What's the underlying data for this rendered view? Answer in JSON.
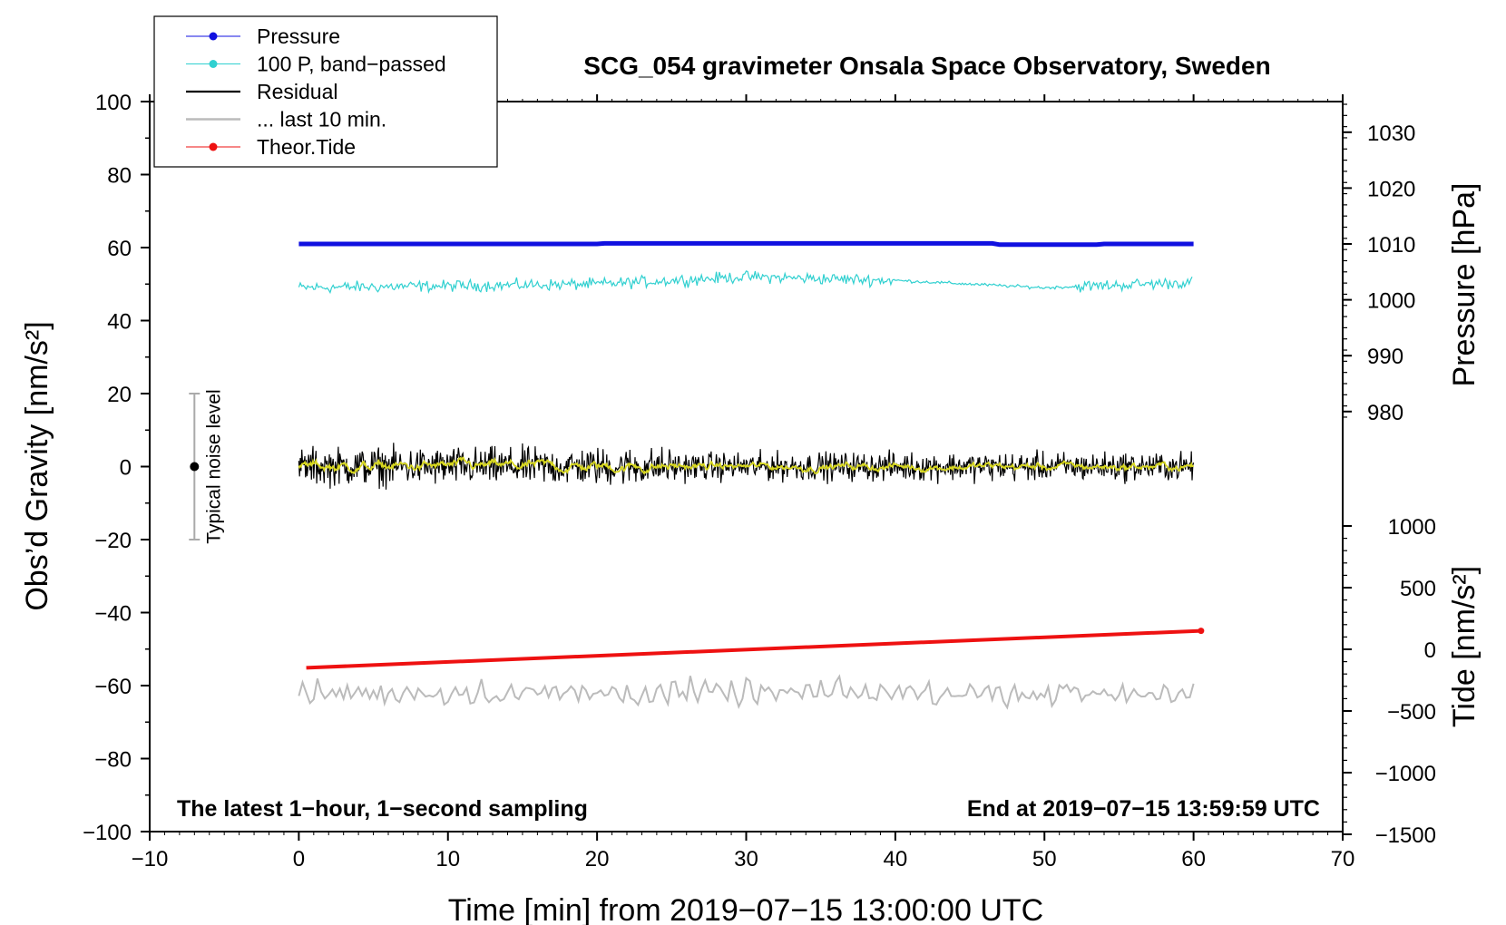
{
  "chart_data": {
    "type": "line",
    "title": "SCG_054 gravimeter Onsala Space Observatory, Sweden",
    "xlabel": "Time [min] from 2019−07−15 13:00:00 UTC",
    "ylabel_left": "Obs’d Gravity [nm/s²]",
    "ylabel_right_top": "Pressure [hPa]",
    "ylabel_right_bottom": "Tide [nm/s²]",
    "xlim": [
      -10,
      70
    ],
    "ylim_left": [
      -100,
      100
    ],
    "xticks": [
      -10,
      0,
      10,
      20,
      30,
      40,
      50,
      60,
      70
    ],
    "xtick_labels": [
      "−10",
      "0",
      "10",
      "20",
      "30",
      "40",
      "50",
      "60",
      "70"
    ],
    "yticks_left": [
      100,
      80,
      60,
      40,
      20,
      0,
      -20,
      -40,
      -60,
      -80,
      -100
    ],
    "ytick_labels_left": [
      "100",
      "80",
      "60",
      "40",
      "20",
      "0",
      "−20",
      "−40",
      "−60",
      "−80",
      "−100"
    ],
    "pressure_axis": {
      "ticks": [
        1030,
        1020,
        1010,
        1000,
        990,
        980
      ],
      "tick_labels": [
        "1030",
        "1020",
        "1010",
        "1000",
        "990",
        "980"
      ],
      "range_hpa": [
        970,
        1035
      ]
    },
    "tide_axis": {
      "ticks": [
        1000,
        500,
        0,
        -500,
        -1000,
        -1500
      ],
      "tick_labels": [
        "1000",
        "500",
        "0",
        "−500",
        "−1000",
        "−1500"
      ],
      "range": [
        -1500,
        1000
      ]
    },
    "legend": {
      "position": "top-left",
      "entries": [
        {
          "label": "Pressure",
          "color": "#1010e0",
          "marker": true
        },
        {
          "label": "100 P, band−passed",
          "color": "#30d0d0",
          "marker": true
        },
        {
          "label": "Residual",
          "color": "#000000",
          "marker": false
        },
        {
          "label": "... last 10 min.",
          "color": "#bbbbbb",
          "marker": false
        },
        {
          "label": "Theor.Tide",
          "color": "#ee1111",
          "marker": true
        }
      ]
    },
    "series": [
      {
        "name": "Pressure",
        "color": "#1010e0",
        "x_range": [
          0,
          60
        ],
        "pressure_hpa": 1009.5,
        "y_left": 61
      },
      {
        "name": "100 P, band−passed",
        "color": "#30d0d0",
        "x": [
          0,
          10,
          20,
          30,
          40,
          50,
          60
        ],
        "y": [
          49,
          49.5,
          50,
          52,
          51,
          49,
          50.5
        ]
      },
      {
        "name": "Residual",
        "color": "#000000",
        "x_range": [
          0,
          60
        ],
        "y_center": 0,
        "amplitude": 3
      },
      {
        "name": "... last 10 min.",
        "color": "#bbbbbb",
        "x_range": [
          0,
          60
        ],
        "y_center": -62,
        "amplitude": 2
      },
      {
        "name": "Theor.Tide",
        "color": "#ee1111",
        "x": [
          0.5,
          60.5
        ],
        "tide_nms2": [
          -150,
          150
        ]
      }
    ],
    "annotations": {
      "noise_label": "Typical noise level",
      "noise_bar": {
        "x": -7,
        "y_center": 0,
        "y_range": [
          -20,
          20
        ]
      },
      "bottom_left": "The latest 1−hour, 1−second sampling",
      "bottom_right": "End at 2019−07−15 13:59:59 UTC"
    },
    "grid": false
  }
}
